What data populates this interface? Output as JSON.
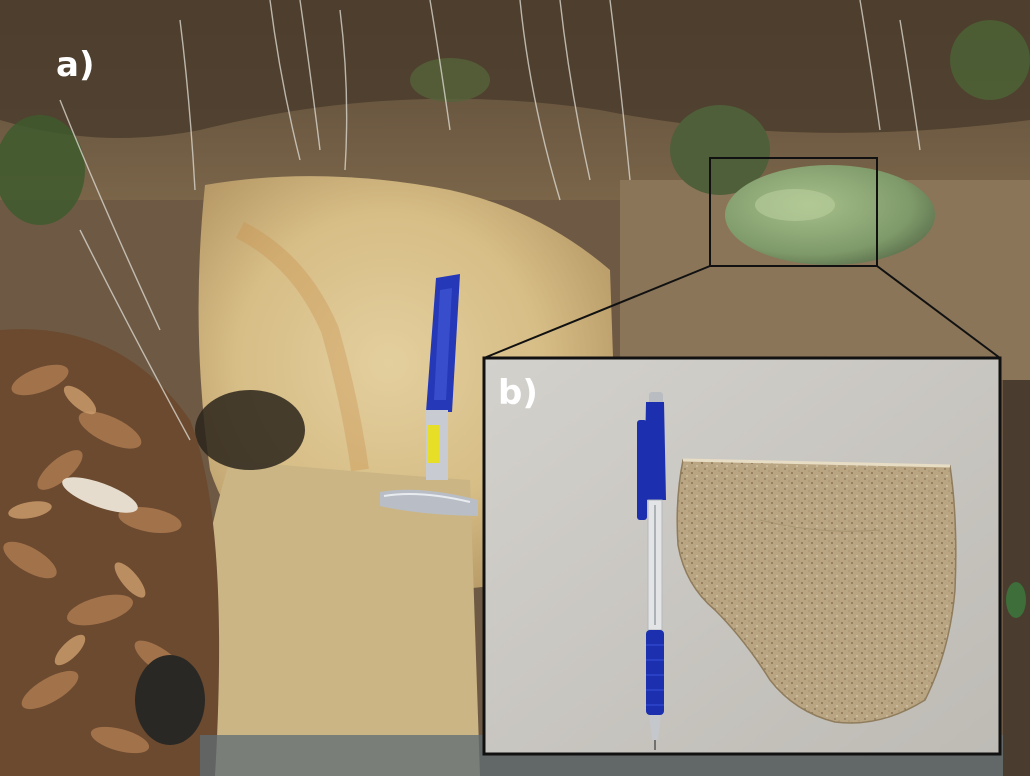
{
  "panels": {
    "a": {
      "label": "a)"
    },
    "b": {
      "label": "b)"
    }
  },
  "colors": {
    "frame": "#111111",
    "inset_background": "#c8c5bf",
    "hammer_handle": "#2438b8",
    "pen_blue": "#1c2fae",
    "sandstone": "#b7a37f"
  },
  "icons": [
    "geological-hammer-icon",
    "ballpoint-pen-icon"
  ]
}
